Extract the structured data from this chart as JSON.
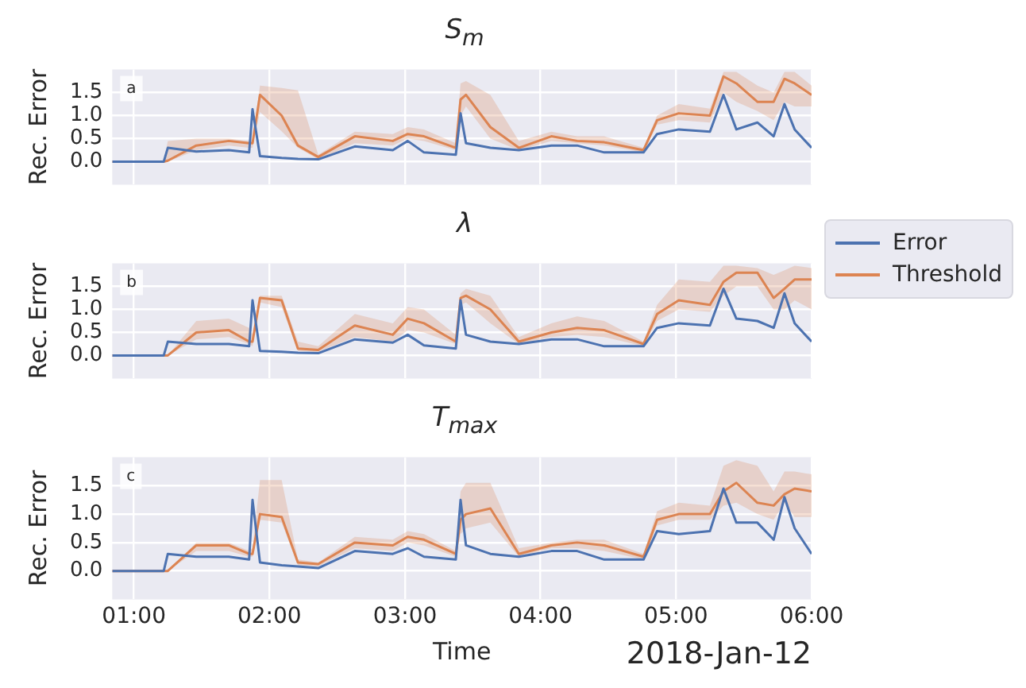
{
  "chart_data": [
    {
      "type": "line",
      "title": "S$_{m}$",
      "ylabel": "Rec. Error",
      "annotations": [
        "a"
      ],
      "xlim": [
        0.84,
        6.0
      ],
      "ylim": [
        -0.5,
        2.0
      ],
      "grid": true,
      "tick_labels": "y",
      "xticks": [
        {
          "value": 1,
          "label": null
        },
        {
          "value": 2,
          "label": null
        },
        {
          "value": 3,
          "label": null
        },
        {
          "value": 4,
          "label": null
        },
        {
          "value": 5,
          "label": null
        },
        {
          "value": 6,
          "label": null
        }
      ],
      "yticks": [
        {
          "value": 0,
          "label": "0.0"
        },
        {
          "value": 0.5,
          "label": "0.5"
        },
        {
          "value": 1,
          "label": "1.0"
        },
        {
          "value": 1.5,
          "label": "1.5"
        }
      ],
      "x": [
        0.84,
        1.22,
        1.25,
        1.46,
        1.7,
        1.85,
        1.875,
        1.93,
        2.09,
        2.21,
        2.36,
        2.63,
        2.91,
        3.02,
        3.14,
        3.375,
        3.41,
        3.45,
        3.63,
        3.84,
        4.08,
        4.27,
        4.47,
        4.76,
        4.86,
        5.02,
        5.25,
        5.35,
        5.445,
        5.6,
        5.72,
        5.8,
        5.875,
        6.0
      ],
      "series": [
        {
          "color": "#4c72b0",
          "values": [
            0,
            0,
            0.3,
            0.22,
            0.25,
            0.2,
            1.14,
            0.12,
            0.08,
            0.06,
            0.05,
            0.33,
            0.25,
            0.45,
            0.2,
            0.15,
            1.05,
            0.4,
            0.3,
            0.25,
            0.35,
            0.35,
            0.2,
            0.2,
            0.6,
            0.7,
            0.65,
            1.45,
            0.7,
            0.85,
            0.55,
            1.25,
            0.7,
            0.3
          ]
        },
        {
          "color": "#dd8452",
          "values": [
            0,
            0,
            0.02,
            0.35,
            0.45,
            0.4,
            0.4,
            1.45,
            1.0,
            0.35,
            0.1,
            0.55,
            0.45,
            0.6,
            0.55,
            0.3,
            1.35,
            1.45,
            0.75,
            0.3,
            0.55,
            0.45,
            0.42,
            0.25,
            0.9,
            1.05,
            1.0,
            1.85,
            1.7,
            1.3,
            1.3,
            1.8,
            1.7,
            1.45
          ],
          "upper": [
            0,
            0,
            0.45,
            0.5,
            0.5,
            0.45,
            0.45,
            1.65,
            1.6,
            1.55,
            0.15,
            0.65,
            0.6,
            0.75,
            0.7,
            0.4,
            1.7,
            1.75,
            1.45,
            0.45,
            0.65,
            0.55,
            0.55,
            0.3,
            1.0,
            1.25,
            1.15,
            1.95,
            1.95,
            1.65,
            1.5,
            1.95,
            1.95,
            1.65
          ],
          "lower": [
            0,
            0,
            0,
            0.25,
            0.35,
            0.3,
            0.3,
            1.08,
            0.66,
            0.3,
            0.05,
            0.4,
            0.35,
            0.5,
            0.45,
            0.25,
            1.0,
            1.2,
            0.5,
            0.25,
            0.45,
            0.4,
            0.35,
            0.2,
            0.8,
            0.9,
            0.85,
            1.5,
            1.3,
            1.1,
            0.9,
            1.3,
            1.2,
            1.2
          ]
        }
      ]
    },
    {
      "type": "line",
      "title": "λ",
      "ylabel": "Rec. Error",
      "annotations": [
        "b"
      ],
      "xlim": [
        0.84,
        6.0
      ],
      "ylim": [
        -0.5,
        2.0
      ],
      "grid": true,
      "tick_labels": "y",
      "legend": "right",
      "xticks": [
        {
          "value": 1,
          "label": null
        },
        {
          "value": 2,
          "label": null
        },
        {
          "value": 3,
          "label": null
        },
        {
          "value": 4,
          "label": null
        },
        {
          "value": 5,
          "label": null
        },
        {
          "value": 6,
          "label": null
        }
      ],
      "yticks": [
        {
          "value": 0,
          "label": "0.0"
        },
        {
          "value": 0.5,
          "label": "0.5"
        },
        {
          "value": 1,
          "label": "1.0"
        },
        {
          "value": 1.5,
          "label": "1.5"
        }
      ],
      "x": [
        0.84,
        1.22,
        1.25,
        1.46,
        1.7,
        1.85,
        1.875,
        1.93,
        2.09,
        2.21,
        2.36,
        2.63,
        2.91,
        3.02,
        3.14,
        3.375,
        3.41,
        3.45,
        3.63,
        3.84,
        4.08,
        4.27,
        4.47,
        4.76,
        4.86,
        5.02,
        5.25,
        5.35,
        5.445,
        5.6,
        5.72,
        5.8,
        5.875,
        6.0
      ],
      "series": [
        {
          "name": "Error",
          "color": "#4c72b0",
          "values": [
            0,
            0,
            0.3,
            0.25,
            0.25,
            0.2,
            1.2,
            0.1,
            0.08,
            0.06,
            0.05,
            0.35,
            0.28,
            0.45,
            0.22,
            0.15,
            1.2,
            0.45,
            0.3,
            0.25,
            0.35,
            0.35,
            0.2,
            0.2,
            0.6,
            0.7,
            0.65,
            1.45,
            0.8,
            0.75,
            0.6,
            1.35,
            0.7,
            0.3
          ]
        },
        {
          "name": "Threshold",
          "color": "#dd8452",
          "values": [
            0,
            0,
            0,
            0.5,
            0.55,
            0.3,
            0.3,
            1.25,
            1.2,
            0.15,
            0.12,
            0.65,
            0.45,
            0.8,
            0.7,
            0.3,
            1.25,
            1.3,
            1.0,
            0.3,
            0.5,
            0.6,
            0.55,
            0.25,
            0.9,
            1.2,
            1.1,
            1.6,
            1.8,
            1.8,
            1.25,
            1.45,
            1.65,
            1.65
          ],
          "upper": [
            0,
            0,
            0,
            0.75,
            0.8,
            0.6,
            0.45,
            1.3,
            1.3,
            0.3,
            0.2,
            0.9,
            0.7,
            1.05,
            1.0,
            0.45,
            1.35,
            1.45,
            1.3,
            0.4,
            0.7,
            0.85,
            0.75,
            0.3,
            1.1,
            1.65,
            1.6,
            1.95,
            1.95,
            1.9,
            1.75,
            1.85,
            1.95,
            1.9
          ],
          "lower": [
            0,
            0,
            0,
            0.35,
            0.4,
            0.25,
            0.2,
            1.15,
            1.05,
            0.1,
            0.08,
            0.4,
            0.3,
            0.55,
            0.5,
            0.25,
            1.1,
            1.15,
            0.7,
            0.25,
            0.4,
            0.45,
            0.4,
            0.2,
            0.75,
            1.0,
            0.95,
            1.3,
            1.5,
            1.5,
            1.0,
            1.0,
            1.2,
            1.0
          ]
        }
      ]
    },
    {
      "type": "line",
      "title": "T$_{max}$",
      "ylabel": "Rec. Error",
      "xlabel": "Time",
      "annotations": [
        "c",
        "2018-Jan-12"
      ],
      "xlim": [
        0.84,
        6.0
      ],
      "ylim": [
        -0.5,
        2.0
      ],
      "grid": true,
      "xticks": [
        {
          "value": 1,
          "label": "01:00"
        },
        {
          "value": 2,
          "label": "02:00"
        },
        {
          "value": 3,
          "label": "03:00"
        },
        {
          "value": 4,
          "label": "04:00"
        },
        {
          "value": 5,
          "label": "05:00"
        },
        {
          "value": 6,
          "label": "06:00"
        }
      ],
      "yticks": [
        {
          "value": 0,
          "label": "0.0"
        },
        {
          "value": 0.5,
          "label": "0.5"
        },
        {
          "value": 1,
          "label": "1.0"
        },
        {
          "value": 1.5,
          "label": "1.5"
        }
      ],
      "x": [
        0.84,
        1.22,
        1.25,
        1.46,
        1.7,
        1.85,
        1.875,
        1.93,
        2.09,
        2.21,
        2.36,
        2.63,
        2.91,
        3.02,
        3.14,
        3.375,
        3.41,
        3.45,
        3.63,
        3.84,
        4.08,
        4.27,
        4.47,
        4.76,
        4.86,
        5.02,
        5.25,
        5.35,
        5.445,
        5.6,
        5.72,
        5.8,
        5.875,
        6.0
      ],
      "series": [
        {
          "color": "#4c72b0",
          "values": [
            0,
            0,
            0.3,
            0.25,
            0.25,
            0.2,
            1.25,
            0.15,
            0.1,
            0.08,
            0.05,
            0.35,
            0.3,
            0.4,
            0.25,
            0.2,
            1.25,
            0.45,
            0.3,
            0.25,
            0.35,
            0.35,
            0.2,
            0.2,
            0.7,
            0.65,
            0.7,
            1.45,
            0.85,
            0.85,
            0.55,
            1.3,
            0.75,
            0.3
          ]
        },
        {
          "color": "#dd8452",
          "values": [
            0,
            0,
            0,
            0.45,
            0.45,
            0.3,
            0.3,
            1.0,
            0.95,
            0.15,
            0.12,
            0.5,
            0.45,
            0.6,
            0.55,
            0.3,
            0.9,
            1.0,
            1.1,
            0.3,
            0.45,
            0.5,
            0.45,
            0.25,
            0.9,
            1.0,
            1.0,
            1.4,
            1.55,
            1.2,
            1.15,
            1.35,
            1.45,
            1.4
          ],
          "upper": [
            0,
            0,
            0,
            0.5,
            0.5,
            0.35,
            0.4,
            1.6,
            1.6,
            0.2,
            0.15,
            0.6,
            0.55,
            0.7,
            0.65,
            0.35,
            1.4,
            1.55,
            1.55,
            0.4,
            0.5,
            0.55,
            0.55,
            0.3,
            1.05,
            1.2,
            1.15,
            1.85,
            1.95,
            1.85,
            1.4,
            1.75,
            1.75,
            1.7
          ],
          "lower": [
            0,
            0,
            0,
            0.35,
            0.35,
            0.25,
            0.25,
            0.9,
            0.85,
            0.1,
            0.08,
            0.4,
            0.35,
            0.5,
            0.45,
            0.25,
            0.65,
            0.75,
            0.85,
            0.25,
            0.4,
            0.4,
            0.35,
            0.2,
            0.8,
            0.9,
            0.9,
            1.15,
            1.2,
            1.0,
            0.9,
            1.2,
            0.95,
            0.95
          ]
        }
      ]
    }
  ]
}
